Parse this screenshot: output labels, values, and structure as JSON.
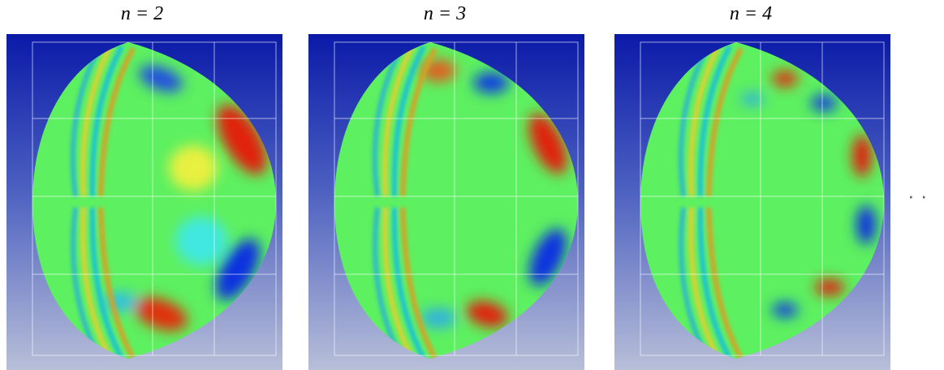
{
  "panels": [
    {
      "title": "n = 2"
    },
    {
      "title": "n = 3"
    },
    {
      "title": "n = 4"
    }
  ],
  "continuation": "· ·"
}
